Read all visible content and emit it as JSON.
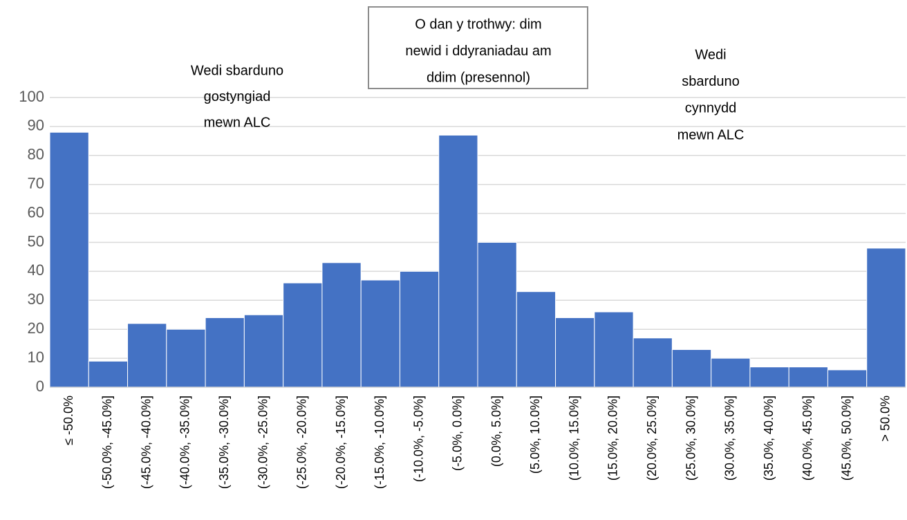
{
  "chart_data": {
    "type": "bar",
    "categories": [
      "≤ -50.0%",
      "(-50.0%, -45.0%]",
      "(-45.0%, -40.0%]",
      "(-40.0%, -35.0%]",
      "(-35.0%, -30.0%]",
      "(-30.0%, -25.0%]",
      "(-25.0%, -20.0%]",
      "(-20.0%, -15.0%]",
      "(-15.0%, -10.0%]",
      "(-10.0%, -5.0%]",
      "(-5.0%, 0.0%]",
      "(0.0%, 5.0%]",
      "(5.0%, 10.0%]",
      "(10.0%, 15.0%]",
      "(15.0%, 20.0%]",
      "(20.0%, 25.0%]",
      "(25.0%, 30.0%]",
      "(30.0%, 35.0%]",
      "(35.0%, 40.0%]",
      "(40.0%, 45.0%]",
      "(45.0%, 50.0%]",
      "> 50.0%"
    ],
    "values": [
      88,
      9,
      22,
      20,
      24,
      25,
      36,
      43,
      37,
      40,
      87,
      50,
      33,
      24,
      26,
      17,
      13,
      10,
      7,
      7,
      6,
      48
    ],
    "color": "#4472c4",
    "ylim": [
      0,
      100
    ],
    "yticks": [
      0,
      10,
      20,
      30,
      40,
      50,
      60,
      70,
      80,
      90,
      100
    ],
    "grid": true,
    "annotations": [
      {
        "lines": [
          "Wedi sbarduno",
          "gostyngiad",
          "mewn ALC"
        ],
        "boxed": false
      },
      {
        "lines": [
          "O dan y trothwy: dim",
          "newid i ddyraniadau am",
          "ddim (presennol)"
        ],
        "boxed": true
      },
      {
        "lines": [
          "Wedi",
          "sbarduno",
          "cynnydd",
          "mewn ALC"
        ],
        "boxed": false
      }
    ]
  }
}
